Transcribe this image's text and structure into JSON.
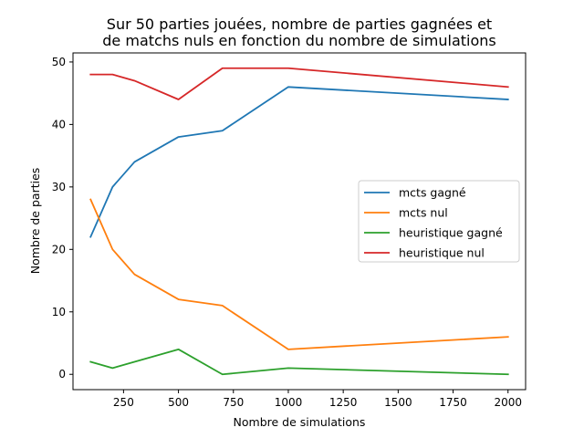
{
  "chart_data": {
    "type": "line",
    "title_lines": [
      "Sur 50 parties jouées, nombre de parties gagnées et",
      "de matchs nuls en fonction du nombre de simulations"
    ],
    "xlabel": "Nombre de simulations",
    "ylabel": "Nombre de parties",
    "xlim": [
      20,
      2080
    ],
    "ylim": [
      -2.45,
      51.45
    ],
    "x_ticks": [
      250,
      500,
      750,
      1000,
      1250,
      1500,
      1750,
      2000
    ],
    "y_ticks": [
      0,
      10,
      20,
      30,
      40,
      50
    ],
    "grid": false,
    "legend_position": "center-right",
    "x": [
      100,
      200,
      300,
      500,
      700,
      1000,
      2000
    ],
    "series": [
      {
        "name": "mcts gagné",
        "color": "#1f77b4",
        "values": [
          22,
          30,
          34,
          38,
          39,
          46,
          44
        ]
      },
      {
        "name": "mcts nul",
        "color": "#ff7f0e",
        "values": [
          28,
          20,
          16,
          12,
          11,
          4,
          6
        ]
      },
      {
        "name": "heuristique gagné",
        "color": "#2ca02c",
        "values": [
          2,
          1,
          2,
          4,
          0,
          1,
          0
        ]
      },
      {
        "name": "heuristique nul",
        "color": "#d62728",
        "values": [
          48,
          48,
          47,
          44,
          49,
          49,
          46
        ]
      }
    ]
  }
}
